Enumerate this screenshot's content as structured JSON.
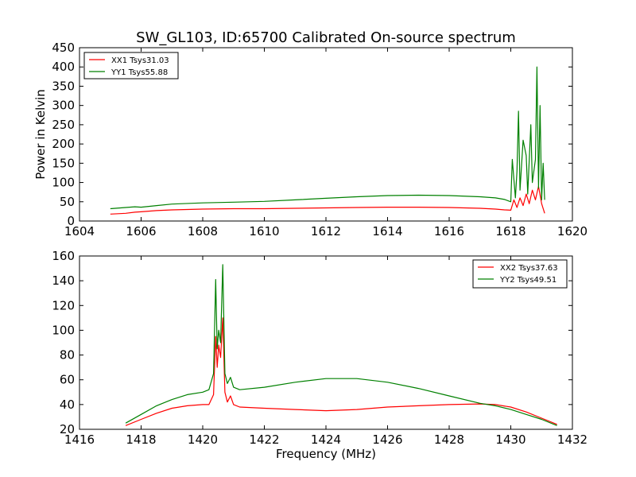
{
  "figure": {
    "title": "SW_GL103, ID:65700 Calibrated On-source spectrum"
  },
  "chart_data": [
    {
      "type": "line",
      "panel": "top",
      "title": "SW_GL103, ID:65700 Calibrated On-source spectrum",
      "xlabel": "",
      "ylabel": "Power in Kelvin",
      "xlim": [
        1604,
        1620
      ],
      "ylim": [
        0,
        450
      ],
      "xticks": [
        1604,
        1606,
        1608,
        1610,
        1612,
        1614,
        1616,
        1618,
        1620
      ],
      "yticks": [
        0,
        50,
        100,
        150,
        200,
        250,
        300,
        350,
        400,
        450
      ],
      "grid": false,
      "legend_position": "top-left",
      "series": [
        {
          "name": "XX1 Tsys31.03",
          "color": "#ff0000",
          "x": [
            1605.0,
            1605.5,
            1605.8,
            1606.0,
            1606.5,
            1607.0,
            1608.0,
            1609.0,
            1610.0,
            1611.0,
            1612.0,
            1613.0,
            1614.0,
            1615.0,
            1616.0,
            1617.0,
            1617.5,
            1617.8,
            1618.0,
            1618.1,
            1618.2,
            1618.3,
            1618.4,
            1618.5,
            1618.6,
            1618.7,
            1618.8,
            1618.9,
            1619.0,
            1619.1
          ],
          "y": [
            18,
            20,
            23,
            24,
            27,
            29,
            31,
            32,
            32,
            33,
            34,
            35,
            36,
            36,
            35,
            33,
            31,
            29,
            28,
            55,
            35,
            60,
            40,
            70,
            45,
            80,
            55,
            90,
            45,
            20
          ]
        },
        {
          "name": "YY1 Tsys55.88",
          "color": "#008000",
          "x": [
            1605.0,
            1605.5,
            1605.8,
            1606.0,
            1606.5,
            1607.0,
            1608.0,
            1609.0,
            1610.0,
            1611.0,
            1612.0,
            1613.0,
            1614.0,
            1615.0,
            1616.0,
            1617.0,
            1617.5,
            1617.8,
            1618.0,
            1618.05,
            1618.15,
            1618.2,
            1618.25,
            1618.3,
            1618.4,
            1618.5,
            1618.55,
            1618.65,
            1618.7,
            1618.8,
            1618.85,
            1618.9,
            1618.95,
            1619.0,
            1619.05,
            1619.1
          ],
          "y": [
            32,
            35,
            37,
            36,
            40,
            44,
            47,
            49,
            51,
            55,
            59,
            63,
            66,
            67,
            66,
            63,
            60,
            56,
            50,
            160,
            60,
            130,
            285,
            80,
            210,
            170,
            70,
            250,
            100,
            160,
            400,
            85,
            300,
            55,
            150,
            55
          ]
        }
      ]
    },
    {
      "type": "line",
      "panel": "bottom",
      "title": "",
      "xlabel": "Frequency (MHz)",
      "ylabel": "",
      "xlim": [
        1416,
        1432
      ],
      "ylim": [
        20,
        160
      ],
      "xticks": [
        1416,
        1418,
        1420,
        1422,
        1424,
        1426,
        1428,
        1430,
        1432
      ],
      "yticks": [
        20,
        40,
        60,
        80,
        100,
        120,
        140,
        160
      ],
      "grid": false,
      "legend_position": "top-right",
      "series": [
        {
          "name": "XX2 Tsys37.63",
          "color": "#ff0000",
          "x": [
            1417.5,
            1418.0,
            1418.5,
            1419.0,
            1419.5,
            1420.0,
            1420.2,
            1420.35,
            1420.42,
            1420.47,
            1420.52,
            1420.58,
            1420.65,
            1420.72,
            1420.8,
            1420.9,
            1421.0,
            1421.2,
            1422.0,
            1423.0,
            1424.0,
            1425.0,
            1426.0,
            1427.0,
            1428.0,
            1429.0,
            1429.5,
            1430.0,
            1430.5,
            1431.0,
            1431.5
          ],
          "y": [
            23,
            28,
            33,
            37,
            39,
            40,
            40,
            48,
            95,
            70,
            88,
            78,
            110,
            50,
            42,
            47,
            40,
            38,
            37,
            36,
            35,
            36,
            38,
            39,
            40,
            40.5,
            40,
            38,
            34,
            29,
            24
          ]
        },
        {
          "name": "YY2 Tsys49.51",
          "color": "#008000",
          "x": [
            1417.5,
            1418.0,
            1418.5,
            1419.0,
            1419.5,
            1420.0,
            1420.2,
            1420.35,
            1420.42,
            1420.47,
            1420.52,
            1420.58,
            1420.65,
            1420.72,
            1420.8,
            1420.9,
            1421.0,
            1421.2,
            1422.0,
            1423.0,
            1424.0,
            1425.0,
            1426.0,
            1427.0,
            1428.0,
            1429.0,
            1429.5,
            1430.0,
            1430.5,
            1431.0,
            1431.5
          ],
          "y": [
            25,
            32,
            39,
            44,
            48,
            50,
            52,
            65,
            141,
            85,
            100,
            90,
            153,
            65,
            57,
            62,
            54,
            52,
            54,
            58,
            61,
            61,
            58,
            53,
            47,
            41,
            39,
            36,
            32,
            28,
            23
          ]
        }
      ]
    }
  ]
}
